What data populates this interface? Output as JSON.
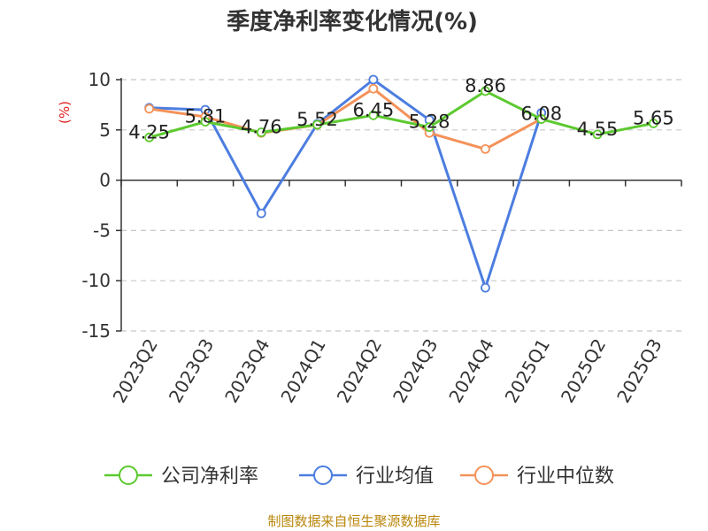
{
  "chart_data": {
    "type": "line",
    "title": "季度净利率变化情况(%)",
    "ylabel": "(%)",
    "categories": [
      "2023Q2",
      "2023Q3",
      "2023Q4",
      "2024Q1",
      "2024Q2",
      "2024Q3",
      "2024Q4",
      "2025Q1",
      "2025Q2",
      "2025Q3"
    ],
    "ylim": [
      -15,
      10
    ],
    "yticks": [
      10,
      5,
      0,
      -5,
      -10,
      -15
    ],
    "grid": true,
    "legend_position": "bottom",
    "series": [
      {
        "name": "公司净利率",
        "color": "#5cc92f",
        "values": [
          4.25,
          5.81,
          4.76,
          5.52,
          6.45,
          5.28,
          8.86,
          6.08,
          4.55,
          5.65
        ],
        "labels": [
          "4.25",
          "5.81",
          "4.76",
          "5.52",
          "6.45",
          "5.28",
          "8.86",
          "6.08",
          "4.55",
          "5.65"
        ]
      },
      {
        "name": "行业均值",
        "color": "#4c7de0",
        "values": [
          7.2,
          7.0,
          -3.3,
          5.6,
          10.0,
          6.0,
          -10.7,
          6.7,
          null,
          null
        ]
      },
      {
        "name": "行业中位数",
        "color": "#f4925a",
        "values": [
          7.1,
          6.3,
          4.7,
          5.5,
          9.1,
          4.7,
          3.1,
          6.1,
          null,
          null
        ]
      }
    ]
  },
  "source": "制图数据来自恒生聚源数据库"
}
